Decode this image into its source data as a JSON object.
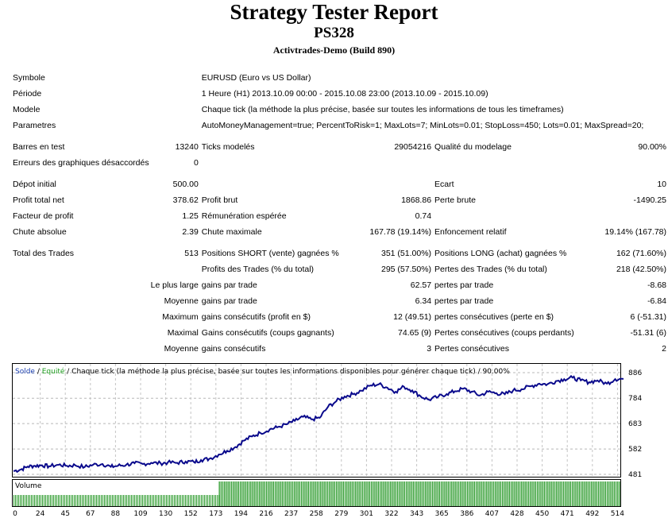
{
  "header": {
    "title": "Strategy Tester Report",
    "subtitle": "PS328",
    "broker": "Activtrades-Demo (Build 890)"
  },
  "info": [
    {
      "label": "Symbole",
      "value": "EURUSD (Euro vs US Dollar)"
    },
    {
      "label": "Période",
      "value": "1 Heure (H1) 2013.10.09 00:00 - 2015.10.08 23:00 (2013.10.09 - 2015.10.09)"
    },
    {
      "label": "Modele",
      "value": "Chaque tick (la méthode la plus précise, basée sur toutes les informations de tous les timeframes)"
    },
    {
      "label": "Parametres",
      "value": "AutoMoneyManagement=true; PercentToRisk=1; MaxLots=7; MinLots=0.01; StopLoss=450; Lots=0.01; MaxSpread=20;"
    }
  ],
  "stats": {
    "bars_label": "Barres en test",
    "bars": "13240",
    "ticks_label": "Ticks modelés",
    "ticks": "29054216",
    "quality_label": "Qualité du modelage",
    "quality": "90.00%",
    "mismatch_label": "Erreurs des graphiques désaccordés",
    "mismatch": "0",
    "deposit_label": "Dépot initial",
    "deposit": "500.00",
    "spread_label": "Ecart",
    "spread": "10",
    "net_label": "Profit total net",
    "net": "378.62",
    "gross_profit_label": "Profit brut",
    "gross_profit": "1868.86",
    "gross_loss_label": "Perte brute",
    "gross_loss": "-1490.25",
    "pf_label": "Facteur de profit",
    "pf": "1.25",
    "payoff_label": "Rémunération espérée",
    "payoff": "0.74",
    "abs_dd_label": "Chute absolue",
    "abs_dd": "2.39",
    "max_dd_label": "Chute maximale",
    "max_dd": "167.78 (19.14%)",
    "rel_dd_label": "Enfoncement relatif",
    "rel_dd": "19.14% (167.78)",
    "trades_label": "Total des Trades",
    "trades": "513",
    "short_label": "Positions SHORT (vente) gagnées %",
    "short": "351 (51.00%)",
    "long_label": "Positions LONG (achat) gagnées %",
    "long": "162 (71.60%)",
    "profit_trades_label": "Profits des Trades (% du total)",
    "profit_trades": "295 (57.50%)",
    "loss_trades_label": "Pertes des Trades (% du total)",
    "loss_trades": "218 (42.50%)",
    "largest_label": "Le plus large",
    "largest_win_label": "gains par trade",
    "largest_win": "62.57",
    "largest_loss_label": "pertes par trade",
    "largest_loss": "-8.68",
    "avg_label": "Moyenne",
    "avg_win_label": "gains par trade",
    "avg_win": "6.34",
    "avg_loss_label": "pertes par trade",
    "avg_loss": "-6.84",
    "max_label": "Maximum",
    "max_cw_label": "gains consécutifs (profit en $)",
    "max_cw": "12 (49.51)",
    "max_cl_label": "pertes consécutives (perte en $)",
    "max_cl": "6 (-51.31)",
    "maximal_label": "Maximal",
    "maximal_cw_label": "Gains consécutifs (coups gagnants)",
    "maximal_cw": "74.65 (9)",
    "maximal_cl_label": "Pertes consécutives (coups perdants)",
    "maximal_cl": "-51.31 (6)",
    "avg2_label": "Moyenne",
    "avg_cw_label": "gains consécutifs",
    "avg_cw": "3",
    "avg_cl_label": "Pertes consécutives",
    "avg_cl": "2"
  },
  "chart_data": {
    "type": "line",
    "legend": {
      "solde": "Solde",
      "sep": " / ",
      "equite": "Equité",
      "desc": " / Chaque tick (la méthode la plus précise, basée sur toutes les informations disponibles pour générer chaque tick) / 90.00%"
    },
    "yticks": [
      "886",
      "784",
      "683",
      "582",
      "481"
    ],
    "ylim": [
      481,
      886
    ],
    "xticks": [
      "0",
      "24",
      "45",
      "67",
      "88",
      "109",
      "130",
      "152",
      "173",
      "194",
      "216",
      "237",
      "258",
      "279",
      "301",
      "322",
      "343",
      "365",
      "386",
      "407",
      "428",
      "450",
      "471",
      "492",
      "514"
    ],
    "xlim": [
      0,
      514
    ],
    "volume_label": "Volume",
    "series": [
      {
        "x": [
          0,
          6,
          12,
          18,
          24,
          30,
          38,
          45,
          52,
          60,
          67,
          75,
          82,
          88,
          95,
          102,
          109,
          116,
          124,
          130,
          138,
          145,
          152,
          158,
          165,
          173,
          180,
          187,
          194,
          201,
          208,
          216,
          222,
          230,
          237,
          244,
          251,
          258,
          265,
          272,
          279,
          286,
          293,
          301,
          308,
          315,
          322,
          329,
          336,
          343,
          350,
          358,
          365,
          372,
          379,
          386,
          393,
          400,
          407,
          414,
          421,
          428,
          436,
          443,
          450,
          457,
          464,
          471,
          478,
          485,
          492,
          500,
          507,
          514
        ],
        "y": [
          494,
          500,
          512,
          515,
          517,
          513,
          519,
          515,
          517,
          510,
          519,
          522,
          511,
          515,
          519,
          525,
          522,
          527,
          525,
          528,
          527,
          532,
          530,
          538,
          543,
          560,
          575,
          590,
          615,
          632,
          646,
          660,
          668,
          680,
          694,
          710,
          700,
          706,
          750,
          772,
          791,
          800,
          814,
          835,
          840,
          826,
          810,
          830,
          815,
          792,
          778,
          790,
          801,
          812,
          822,
          810,
          795,
          810,
          804,
          800,
          815,
          820,
          832,
          842,
          840,
          852,
          860,
          866,
          855,
          848,
          855,
          842,
          860,
          861
        ]
      }
    ],
    "volume_start_x": 173
  }
}
